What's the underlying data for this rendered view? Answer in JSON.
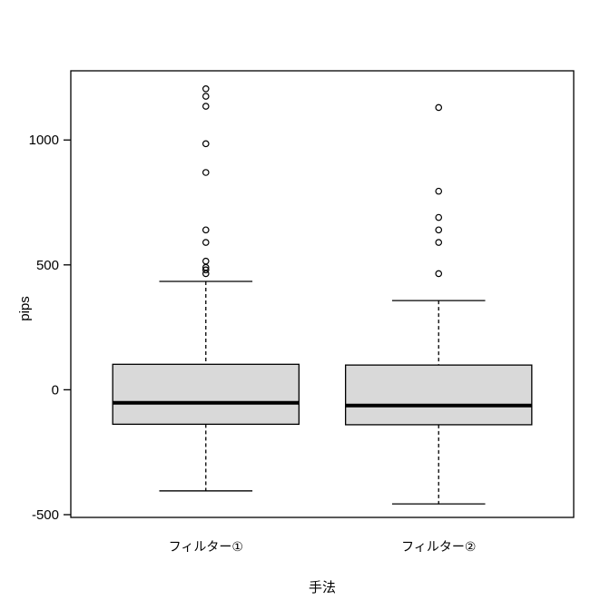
{
  "chart_data": {
    "type": "boxplot",
    "title": "",
    "xlabel": "手法",
    "ylabel": "pips",
    "categories": [
      "フィルター①",
      "フィルター②"
    ],
    "positions": [
      1,
      2
    ],
    "xlim": [
      0.42,
      2.58
    ],
    "ylim": [
      -511,
      1277
    ],
    "yticks": [
      -500,
      0,
      500,
      1000
    ],
    "grid": false,
    "legend": "none",
    "box_width": 0.8,
    "cap_width": 0.4,
    "series": [
      {
        "label": "フィルター①",
        "lower_whisker": -405,
        "q1": -138,
        "median": -52,
        "q3": 102,
        "upper_whisker": 434,
        "outliers": [
          465,
          480,
          490,
          515,
          590,
          640,
          870,
          985,
          1135,
          1175,
          1205
        ]
      },
      {
        "label": "フィルター②",
        "lower_whisker": -457,
        "q1": -140,
        "median": -63,
        "q3": 99,
        "upper_whisker": 357,
        "outliers": [
          465,
          590,
          640,
          690,
          795,
          1130
        ]
      }
    ],
    "colors": {
      "box_fill": "#d9d9d9",
      "line": "#000000",
      "background": "#ffffff"
    }
  }
}
